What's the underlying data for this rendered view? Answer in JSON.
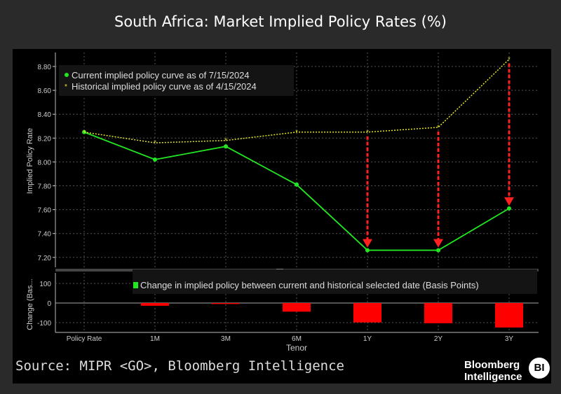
{
  "title": "South Africa: Market Implied Policy Rates (%)",
  "source": "Source: MIPR <GO>, Bloomberg Intelligence",
  "logo": {
    "line1": "Bloomberg",
    "line2": "Intelligence",
    "badge": "BI"
  },
  "chart_data": [
    {
      "type": "line",
      "categories": [
        "Policy Rate",
        "1M",
        "3M",
        "6M",
        "1Y",
        "2Y",
        "3Y"
      ],
      "ylabel": "Implied Policy Rate",
      "ylim": [
        7.1,
        8.9
      ],
      "yticks": [
        "7.20",
        "7.40",
        "7.60",
        "7.80",
        "8.00",
        "8.20",
        "8.40",
        "8.60",
        "8.80"
      ],
      "grid": true,
      "legend": "top-left",
      "series": [
        {
          "name": "Current implied policy curve as of 7/15/2024",
          "color": "#22e622",
          "values": [
            8.25,
            8.02,
            8.13,
            7.81,
            7.26,
            7.26,
            7.61
          ]
        },
        {
          "name": "Historical implied policy curve as of 4/15/2024",
          "color": "#e6e62a",
          "values": [
            8.25,
            8.16,
            8.18,
            8.25,
            8.25,
            8.29,
            8.86
          ]
        }
      ],
      "arrows_at": [
        "1Y",
        "2Y",
        "3Y"
      ],
      "arrow_color": "#ff2020"
    },
    {
      "type": "bar",
      "categories": [
        "Policy Rate",
        "1M",
        "3M",
        "6M",
        "1Y",
        "2Y",
        "3Y"
      ],
      "xlabel": "Tenor",
      "ylabel": "Change (Bas...",
      "ylim": [
        -150,
        150
      ],
      "yticks": [
        "-100",
        "0",
        "100"
      ],
      "series": [
        {
          "name": "Change in implied policy between current and historical selected date (Basis Points)",
          "color": "#ff0000",
          "legend_color": "#22e622",
          "values": [
            0,
            -14,
            -5,
            -44,
            -99,
            -103,
            -125
          ]
        }
      ]
    }
  ]
}
